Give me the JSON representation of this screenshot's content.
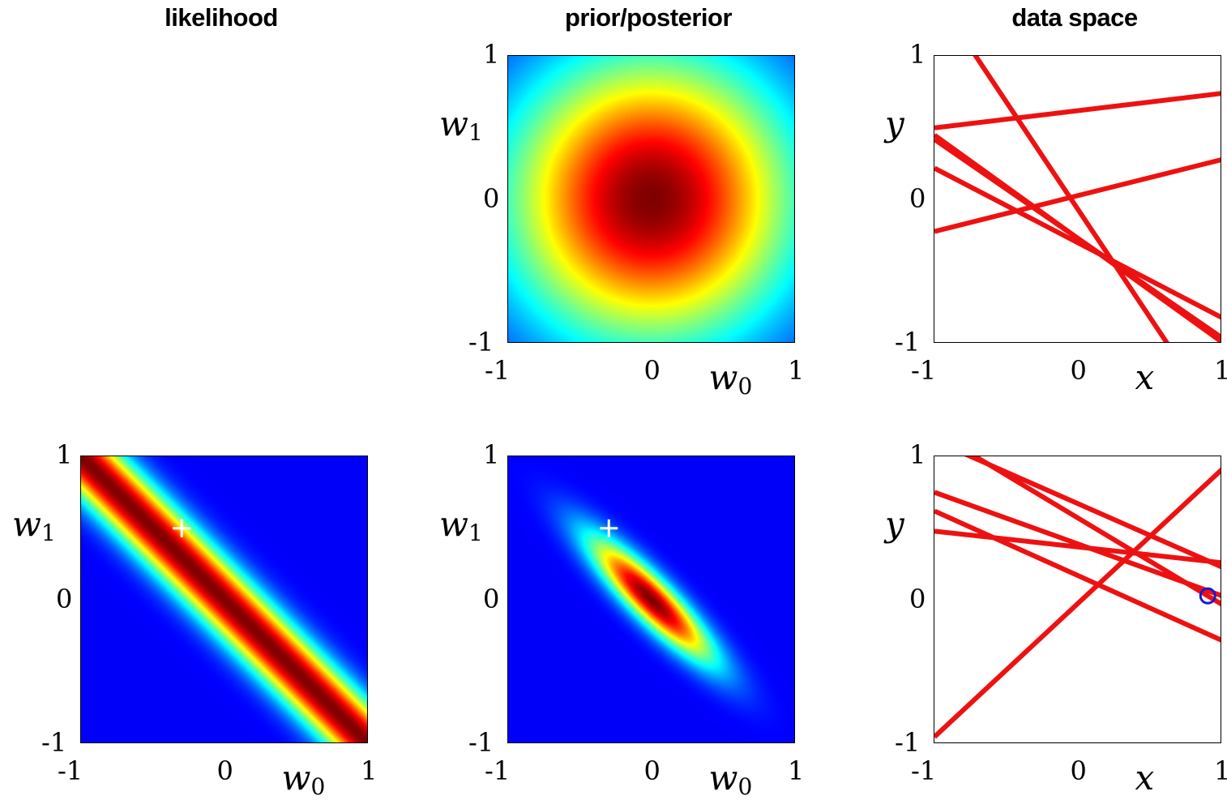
{
  "column_titles": {
    "likelihood": "likelihood",
    "prior_posterior": "prior/posterior",
    "data_space": "data space"
  },
  "chart_data": [
    {
      "id": "prior",
      "type": "heatmap",
      "distribution": "gaussian",
      "mean": [
        0,
        0
      ],
      "covariance": [
        [
          0.5,
          0
        ],
        [
          0,
          0.5
        ]
      ],
      "colormap": "jet",
      "xlabel": "w0",
      "ylabel": "w1",
      "xlim": [
        -1,
        1
      ],
      "ylim": [
        -1,
        1
      ],
      "xticks": [
        "-1",
        "0",
        "1"
      ],
      "yticks": [
        "-1",
        "0",
        "1"
      ]
    },
    {
      "id": "data_space_prior",
      "type": "line",
      "xlabel": "x",
      "ylabel": "y",
      "xlim": [
        -1,
        1
      ],
      "ylim": [
        -1,
        1
      ],
      "xticks": [
        "-1",
        "0",
        "1"
      ],
      "yticks": [
        "-1",
        "0",
        "1"
      ],
      "line_color": "#ee1111",
      "lines": [
        {
          "w0": 0.62,
          "w1": 0.12
        },
        {
          "w0": 0.03,
          "w1": 0.25
        },
        {
          "w0": -0.27,
          "w1": -0.72
        },
        {
          "w0": -0.3,
          "w1": -0.52
        },
        {
          "w0": -0.07,
          "w1": -1.5
        },
        {
          "w0": -0.27,
          "w1": -0.69
        }
      ]
    },
    {
      "id": "likelihood",
      "type": "heatmap",
      "distribution": "likelihood_band",
      "band_direction": [
        1,
        1
      ],
      "band_center": 0.0,
      "band_sigma": 0.14,
      "colormap": "jet",
      "true_parameter_marker": {
        "w0": -0.3,
        "w1": 0.5,
        "symbol": "+",
        "color": "#ffffff"
      },
      "xlabel": "w0",
      "ylabel": "w1",
      "xlim": [
        -1,
        1
      ],
      "ylim": [
        -1,
        1
      ],
      "xticks": [
        "-1",
        "0",
        "1"
      ],
      "yticks": [
        "-1",
        "0",
        "1"
      ]
    },
    {
      "id": "posterior",
      "type": "heatmap",
      "distribution": "gaussian",
      "mean": [
        0,
        0
      ],
      "covariance": [
        [
          0.09,
          -0.08
        ],
        [
          -0.08,
          0.09
        ]
      ],
      "colormap": "jet",
      "true_parameter_marker": {
        "w0": -0.3,
        "w1": 0.5,
        "symbol": "+",
        "color": "#ffffff"
      },
      "xlabel": "w0",
      "ylabel": "w1",
      "xlim": [
        -1,
        1
      ],
      "ylim": [
        -1,
        1
      ],
      "xticks": [
        "-1",
        "0",
        "1"
      ],
      "yticks": [
        "-1",
        "0",
        "1"
      ]
    },
    {
      "id": "data_space_posterior",
      "type": "line",
      "xlabel": "x",
      "ylabel": "y",
      "xlim": [
        -1,
        1
      ],
      "ylim": [
        -1,
        1
      ],
      "xticks": [
        "-1",
        "0",
        "1"
      ],
      "yticks": [
        "-1",
        "0",
        "1"
      ],
      "line_color": "#ee1111",
      "lines": [
        {
          "w0": 0.37,
          "w1": -0.11
        },
        {
          "w0": 0.39,
          "w1": -0.36
        },
        {
          "w0": 0.67,
          "w1": -0.44
        },
        {
          "w0": 0.17,
          "w1": -0.45
        },
        {
          "w0": 0.57,
          "w1": -0.6
        },
        {
          "w0": -0.02,
          "w1": 0.93
        }
      ],
      "data_point": {
        "x": 0.9,
        "y": 0.03,
        "marker": "o",
        "color": "#1a1acc"
      }
    }
  ]
}
